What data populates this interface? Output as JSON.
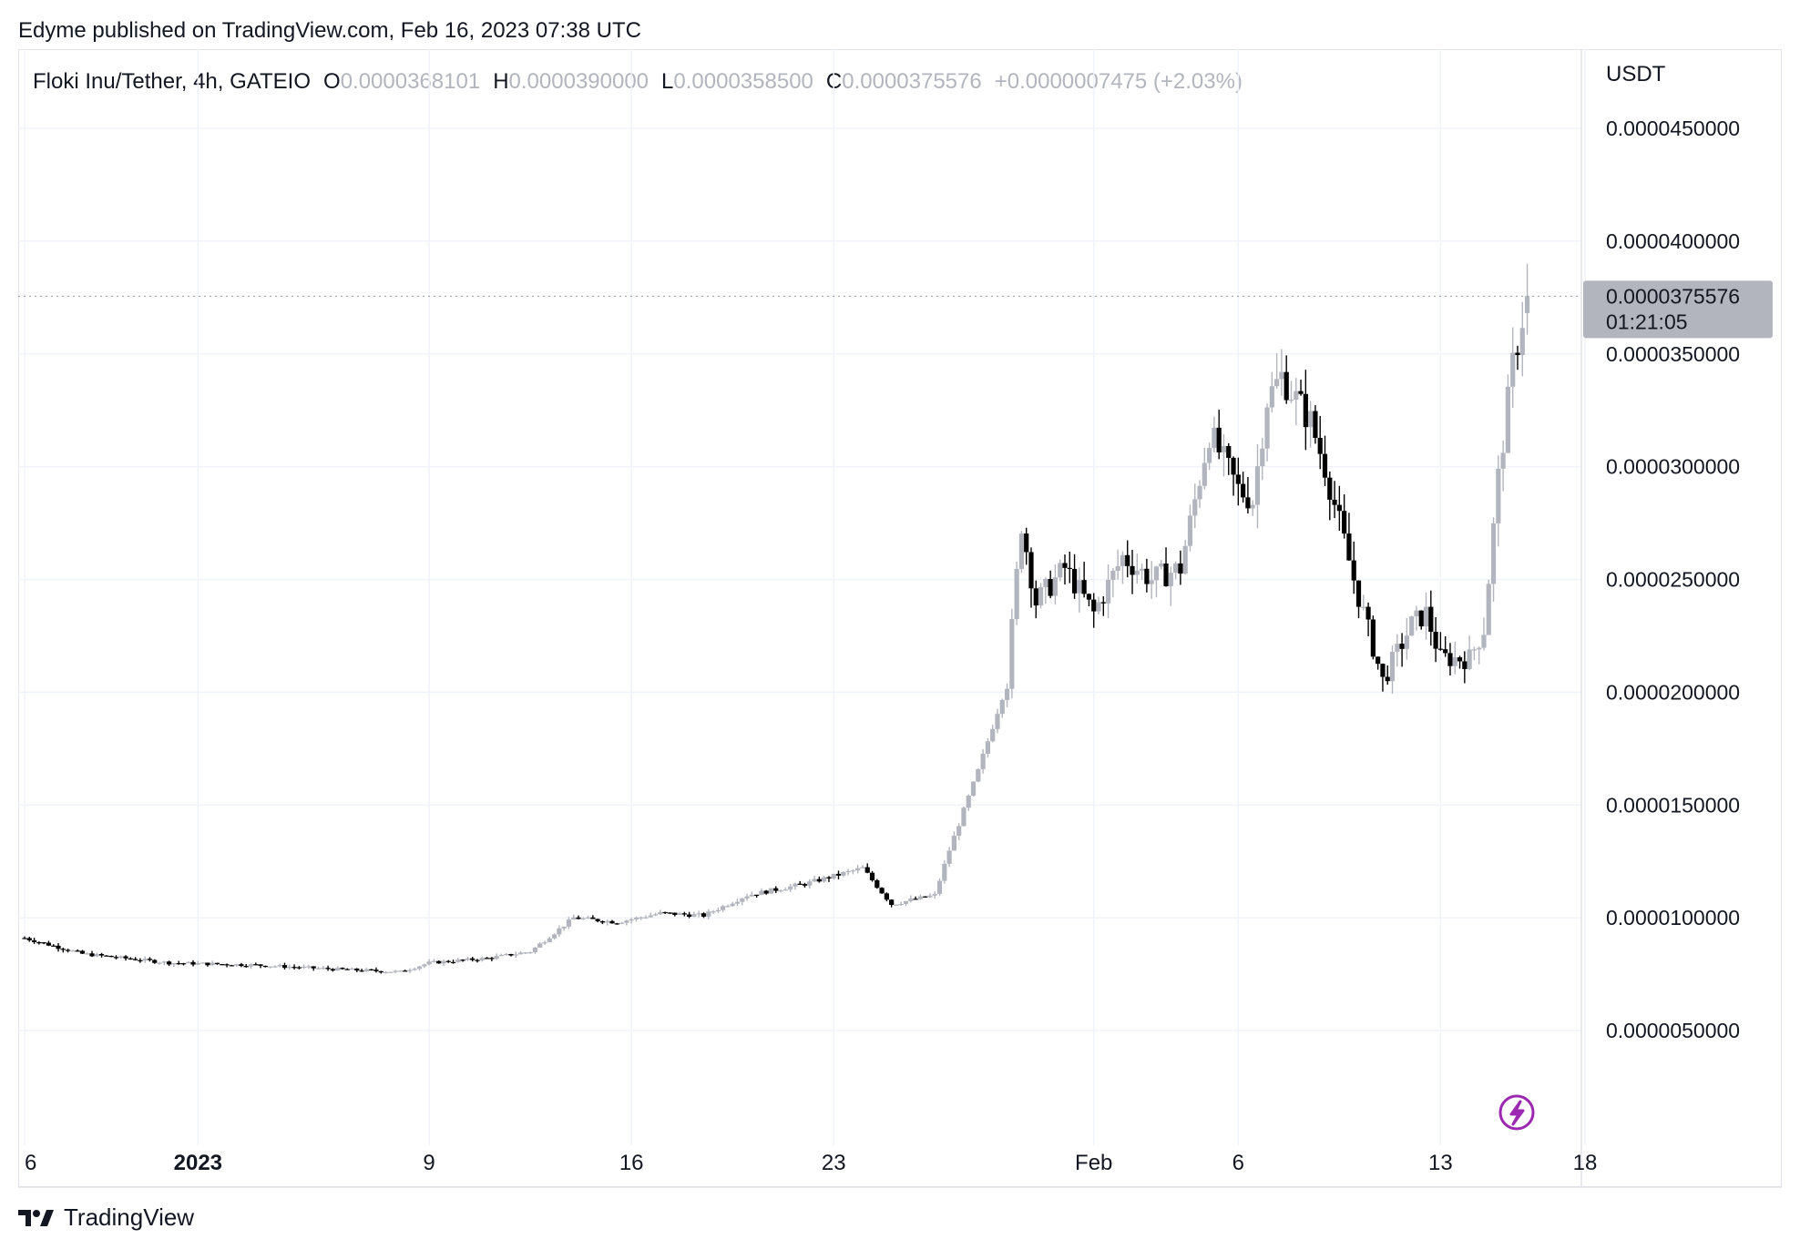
{
  "header": {
    "publisher_line": "Edyme published on TradingView.com, Feb 16, 2023 07:38 UTC"
  },
  "legend": {
    "symbol": "Floki Inu/Tether, 4h, GATEIO",
    "open_label": "O",
    "open": "0.0000368101",
    "high_label": "H",
    "high": "0.0000390000",
    "low_label": "L",
    "low": "0.0000358500",
    "close_label": "C",
    "close": "0.0000375576",
    "change": "+0.0000007475 (+2.03%)"
  },
  "price_axis": {
    "currency": "USDT",
    "tick_labels": [
      "0.0000450000",
      "0.0000400000",
      "0.0000350000",
      "0.0000300000",
      "0.0000250000",
      "0.0000200000",
      "0.0000150000",
      "0.0000100000",
      "0.0000050000"
    ]
  },
  "last_price": {
    "value": "0.0000375576",
    "countdown": "01:21:05"
  },
  "time_axis": {
    "tick_labels": [
      "6",
      "2023",
      "9",
      "16",
      "23",
      "Feb",
      "6",
      "13",
      "18"
    ]
  },
  "footer": {
    "brand": "TradingView",
    "logo_icon": "tradingview-logo-icon"
  },
  "colors": {
    "up": "#b2b5be",
    "down": "#000000",
    "grid": "#f0f3fa",
    "badge": "#b2b5be",
    "flash": "#9c27b0"
  },
  "chart_data": {
    "type": "candlestick",
    "title": "Floki Inu/Tether, 4h, GATEIO",
    "ylabel": "USDT",
    "ylim": [
      5e-07,
      4.75e-05
    ],
    "yticks": [
      4.5e-05,
      4e-05,
      3.5e-05,
      3e-05,
      2.5e-05,
      2e-05,
      1.5e-05,
      1e-05,
      5e-06
    ],
    "xlim": [
      "2022-12-26",
      "2023-02-18"
    ],
    "xtick_dates": [
      "2022-12-26",
      "2023-01-01",
      "2023-01-09",
      "2023-01-16",
      "2023-01-23",
      "2023-02-01",
      "2023-02-06",
      "2023-02-13",
      "2023-02-18"
    ],
    "grid": true,
    "key_points": [
      {
        "date": "2022-12-26T00:00",
        "price": 9.1e-06
      },
      {
        "date": "2022-12-28T00:00",
        "price": 8.4e-06
      },
      {
        "date": "2022-12-31T00:00",
        "price": 8e-06
      },
      {
        "date": "2023-01-03T00:00",
        "price": 7.9e-06
      },
      {
        "date": "2023-01-06T00:00",
        "price": 7.7e-06
      },
      {
        "date": "2023-01-08T00:00",
        "price": 7.6e-06
      },
      {
        "date": "2023-01-09T00:00",
        "price": 8e-06
      },
      {
        "date": "2023-01-11T00:00",
        "price": 8.2e-06
      },
      {
        "date": "2023-01-12T12:00",
        "price": 8.5e-06
      },
      {
        "date": "2023-01-14T00:00",
        "price": 1e-05
      },
      {
        "date": "2023-01-15T12:00",
        "price": 9.8e-06
      },
      {
        "date": "2023-01-17T00:00",
        "price": 1.02e-05
      },
      {
        "date": "2023-01-18T12:00",
        "price": 1.01e-05
      },
      {
        "date": "2023-01-20T00:00",
        "price": 1.1e-05
      },
      {
        "date": "2023-01-22T00:00",
        "price": 1.15e-05
      },
      {
        "date": "2023-01-24T00:00",
        "price": 1.22e-05
      },
      {
        "date": "2023-01-25T00:00",
        "price": 1.06e-05
      },
      {
        "date": "2023-01-26T12:00",
        "price": 1.1e-05
      },
      {
        "date": "2023-01-27T00:00",
        "price": 1.3e-05
      },
      {
        "date": "2023-01-28T00:00",
        "price": 1.65e-05
      },
      {
        "date": "2023-01-29T00:00",
        "price": 2.05e-05
      },
      {
        "date": "2023-01-29T12:00",
        "price": 2.75e-05
      },
      {
        "date": "2023-01-30T00:00",
        "price": 2.4e-05
      },
      {
        "date": "2023-01-31T00:00",
        "price": 2.55e-05
      },
      {
        "date": "2023-02-01T00:00",
        "price": 2.35e-05
      },
      {
        "date": "2023-02-02T00:00",
        "price": 2.6e-05
      },
      {
        "date": "2023-02-03T00:00",
        "price": 2.5e-05
      },
      {
        "date": "2023-02-04T00:00",
        "price": 2.55e-05
      },
      {
        "date": "2023-02-05T00:00",
        "price": 3.15e-05
      },
      {
        "date": "2023-02-06T00:00",
        "price": 2.9e-05
      },
      {
        "date": "2023-02-06T12:00",
        "price": 2.85e-05
      },
      {
        "date": "2023-02-07T00:00",
        "price": 3.3e-05
      },
      {
        "date": "2023-02-07T12:00",
        "price": 3.4e-05
      },
      {
        "date": "2023-02-08T12:00",
        "price": 3.2e-05
      },
      {
        "date": "2023-02-09T00:00",
        "price": 3e-05
      },
      {
        "date": "2023-02-10T00:00",
        "price": 2.5e-05
      },
      {
        "date": "2023-02-11T00:00",
        "price": 2.05e-05
      },
      {
        "date": "2023-02-12T00:00",
        "price": 2.3e-05
      },
      {
        "date": "2023-02-12T12:00",
        "price": 2.35e-05
      },
      {
        "date": "2023-02-13T00:00",
        "price": 2.15e-05
      },
      {
        "date": "2023-02-14T00:00",
        "price": 2.15e-05
      },
      {
        "date": "2023-02-14T12:00",
        "price": 2.28e-05
      },
      {
        "date": "2023-02-15T00:00",
        "price": 2.95e-05
      },
      {
        "date": "2023-02-15T12:00",
        "price": 3.45e-05
      },
      {
        "date": "2023-02-16T00:00",
        "price": 3.75576e-05
      }
    ],
    "last_candle": {
      "open": 3.68101e-05,
      "high": 3.9e-05,
      "low": 3.585e-05,
      "close": 3.75576e-05
    }
  }
}
